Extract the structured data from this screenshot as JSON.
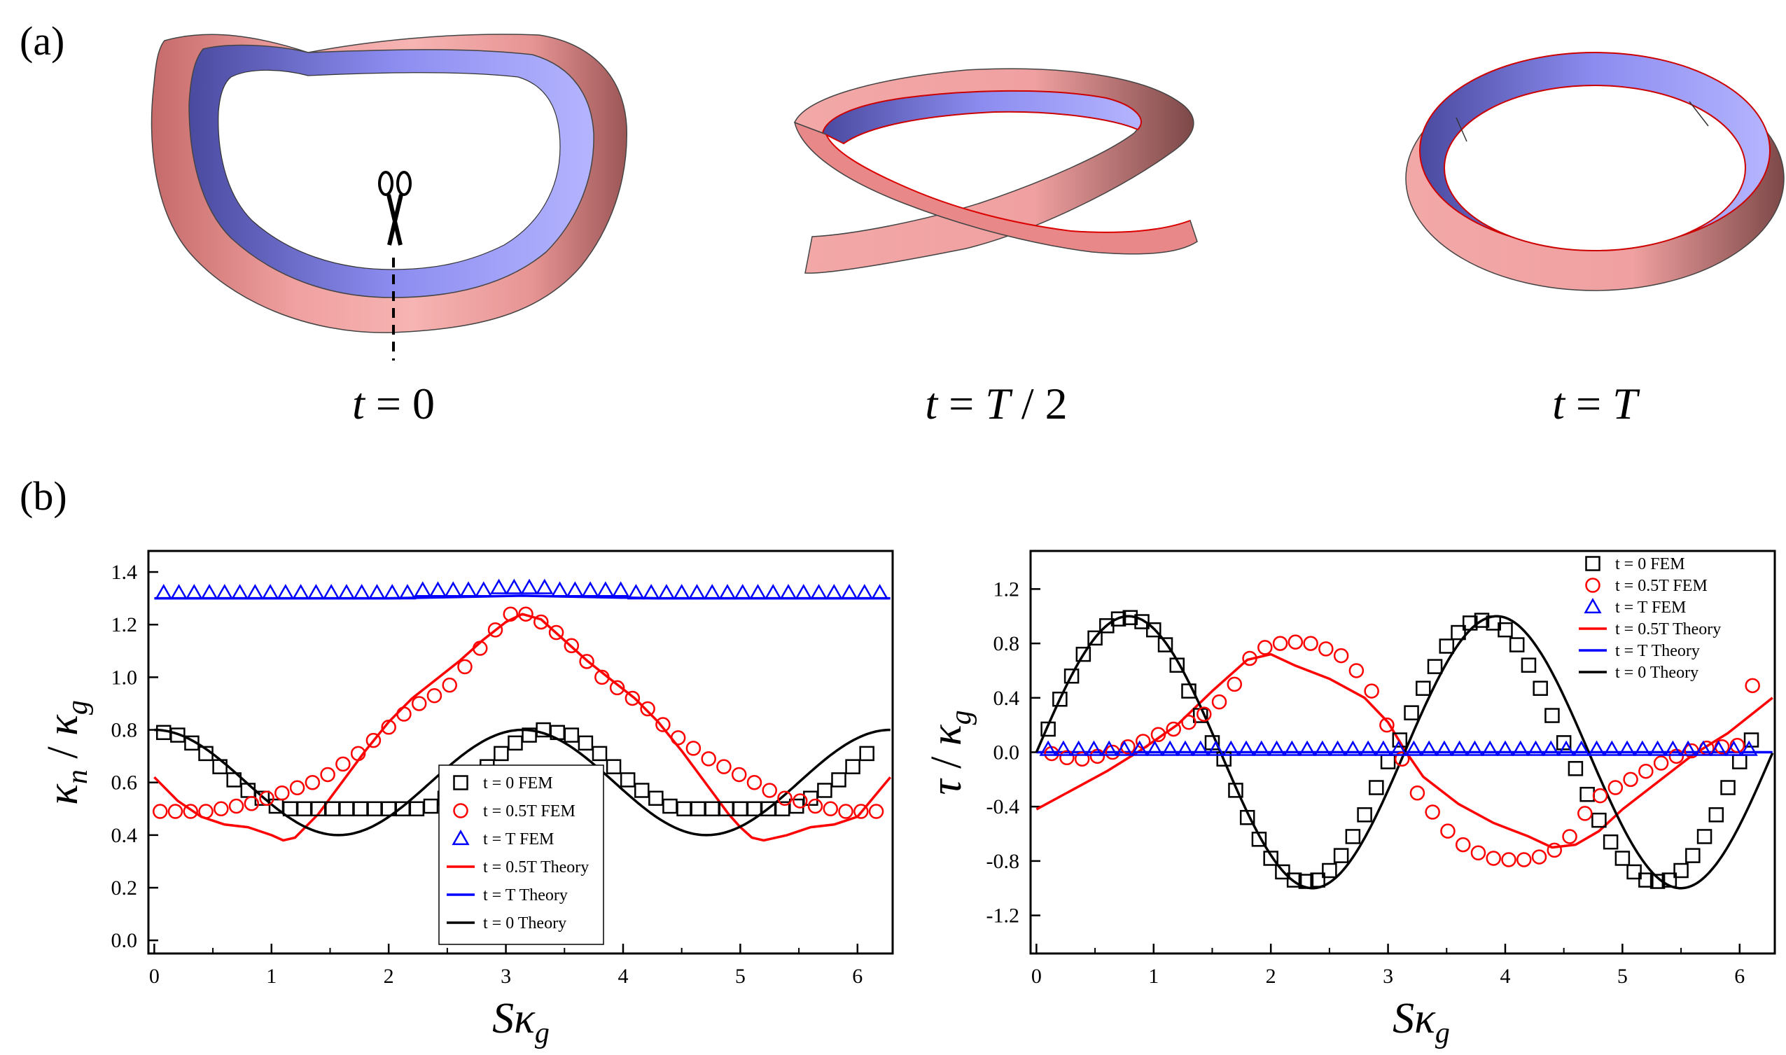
{
  "panel_a": {
    "label": "(a)",
    "captions": [
      "t = 0",
      "t = T / 2",
      "t = T"
    ]
  },
  "panel_b": {
    "label": "(b)"
  },
  "chart_data": [
    {
      "type": "scatter",
      "title": "",
      "xlabel": "Sκg",
      "ylabel": "κn / κg",
      "xlim": [
        -0.05,
        6.3
      ],
      "ylim": [
        -0.05,
        1.48
      ],
      "xticks": [
        0,
        1,
        2,
        3,
        4,
        5,
        6
      ],
      "xtick_labels": [
        "0",
        "1",
        "2",
        "3",
        "4",
        "5",
        "6"
      ],
      "yticks": [
        0.0,
        0.2,
        0.4,
        0.6,
        0.8,
        1.0,
        1.2,
        1.4
      ],
      "ytick_labels": [
        "0.0",
        "0.2",
        "0.4",
        "0.6",
        "0.8",
        "1.0",
        "1.2",
        "1.4"
      ],
      "legend": [
        {
          "name": "t = 0 FEM",
          "kind": "square",
          "color": "#000000"
        },
        {
          "name": "t = 0.5T FEM",
          "kind": "circle",
          "color": "#ff0000"
        },
        {
          "name": "t = T FEM",
          "kind": "triangle",
          "color": "#0000ff"
        },
        {
          "name": "t = 0.5T Theory",
          "kind": "line",
          "color": "#ff0000"
        },
        {
          "name": "t = T Theory",
          "kind": "line",
          "color": "#0000ff"
        },
        {
          "name": "t = 0 Theory",
          "kind": "line",
          "color": "#000000"
        }
      ],
      "legend_position": "bottom-center",
      "series": [
        {
          "name": "t = 0 FEM",
          "kind": "square",
          "color": "#000000",
          "x": [
            0.08,
            0.2,
            0.32,
            0.44,
            0.56,
            0.68,
            0.8,
            0.92,
            1.04,
            1.16,
            1.28,
            1.4,
            1.52,
            1.64,
            1.76,
            1.88,
            2.0,
            2.12,
            2.24,
            2.36,
            2.48,
            2.6,
            2.72,
            2.84,
            2.96,
            3.08,
            3.2,
            3.32,
            3.44,
            3.56,
            3.68,
            3.8,
            3.92,
            4.04,
            4.16,
            4.28,
            4.4,
            4.52,
            4.64,
            4.76,
            4.88,
            5.0,
            5.12,
            5.24,
            5.36,
            5.48,
            5.6,
            5.72,
            5.84,
            5.96,
            6.08
          ],
          "y": [
            0.79,
            0.78,
            0.75,
            0.71,
            0.66,
            0.61,
            0.57,
            0.54,
            0.51,
            0.5,
            0.5,
            0.5,
            0.5,
            0.5,
            0.5,
            0.5,
            0.5,
            0.5,
            0.5,
            0.51,
            0.54,
            0.57,
            0.61,
            0.66,
            0.71,
            0.75,
            0.78,
            0.8,
            0.79,
            0.78,
            0.75,
            0.71,
            0.66,
            0.61,
            0.57,
            0.54,
            0.51,
            0.5,
            0.5,
            0.5,
            0.5,
            0.5,
            0.5,
            0.5,
            0.5,
            0.51,
            0.54,
            0.57,
            0.61,
            0.66,
            0.71
          ]
        },
        {
          "name": "t = 0.5T FEM",
          "kind": "circle",
          "color": "#ff0000",
          "x": [
            0.05,
            0.18,
            0.31,
            0.44,
            0.57,
            0.7,
            0.83,
            0.96,
            1.09,
            1.22,
            1.35,
            1.48,
            1.61,
            1.74,
            1.87,
            2.0,
            2.13,
            2.26,
            2.39,
            2.52,
            2.65,
            2.78,
            2.91,
            3.04,
            3.17,
            3.3,
            3.43,
            3.56,
            3.69,
            3.82,
            3.95,
            4.08,
            4.21,
            4.34,
            4.47,
            4.6,
            4.73,
            4.86,
            4.99,
            5.12,
            5.25,
            5.38,
            5.51,
            5.64,
            5.77,
            5.9,
            6.03,
            6.16
          ],
          "y": [
            0.49,
            0.49,
            0.49,
            0.49,
            0.5,
            0.51,
            0.52,
            0.54,
            0.56,
            0.58,
            0.6,
            0.63,
            0.67,
            0.71,
            0.76,
            0.81,
            0.86,
            0.9,
            0.93,
            0.97,
            1.04,
            1.11,
            1.18,
            1.24,
            1.24,
            1.21,
            1.17,
            1.12,
            1.06,
            1.0,
            0.96,
            0.92,
            0.88,
            0.82,
            0.77,
            0.73,
            0.69,
            0.66,
            0.63,
            0.6,
            0.57,
            0.54,
            0.53,
            0.51,
            0.5,
            0.49,
            0.49,
            0.49
          ]
        },
        {
          "name": "t = T FEM",
          "kind": "triangle",
          "color": "#0000ff",
          "x": [
            0.08,
            0.21,
            0.34,
            0.47,
            0.6,
            0.73,
            0.86,
            0.99,
            1.12,
            1.25,
            1.38,
            1.51,
            1.64,
            1.77,
            1.9,
            2.03,
            2.16,
            2.29,
            2.42,
            2.55,
            2.68,
            2.81,
            2.94,
            3.07,
            3.2,
            3.33,
            3.46,
            3.59,
            3.72,
            3.85,
            3.98,
            4.11,
            4.24,
            4.37,
            4.5,
            4.63,
            4.76,
            4.89,
            5.02,
            5.15,
            5.28,
            5.41,
            5.54,
            5.67,
            5.8,
            5.93,
            6.06,
            6.19
          ],
          "y": [
            1.32,
            1.32,
            1.32,
            1.32,
            1.32,
            1.32,
            1.32,
            1.32,
            1.32,
            1.32,
            1.32,
            1.32,
            1.32,
            1.32,
            1.32,
            1.32,
            1.32,
            1.33,
            1.33,
            1.33,
            1.33,
            1.33,
            1.34,
            1.34,
            1.34,
            1.34,
            1.33,
            1.33,
            1.33,
            1.33,
            1.33,
            1.32,
            1.32,
            1.32,
            1.32,
            1.32,
            1.32,
            1.32,
            1.32,
            1.32,
            1.32,
            1.32,
            1.32,
            1.32,
            1.32,
            1.32,
            1.32,
            1.32
          ]
        },
        {
          "name": "t = 0.5T Theory",
          "kind": "line",
          "color": "#ff0000",
          "x": [
            0.0,
            0.2,
            0.4,
            0.6,
            0.8,
            1.0,
            1.1,
            1.2,
            1.4,
            1.6,
            1.8,
            2.0,
            2.2,
            2.4,
            2.6,
            2.8,
            3.0,
            3.14,
            3.3,
            3.5,
            3.7,
            3.9,
            4.1,
            4.3,
            4.5,
            4.7,
            4.9,
            5.0,
            5.1,
            5.2,
            5.4,
            5.6,
            5.8,
            6.0,
            6.28
          ],
          "y": [
            0.62,
            0.53,
            0.47,
            0.44,
            0.43,
            0.4,
            0.38,
            0.39,
            0.48,
            0.6,
            0.72,
            0.83,
            0.92,
            0.99,
            1.06,
            1.14,
            1.21,
            1.24,
            1.22,
            1.14,
            1.06,
            0.99,
            0.92,
            0.83,
            0.72,
            0.6,
            0.48,
            0.43,
            0.39,
            0.38,
            0.4,
            0.43,
            0.44,
            0.47,
            0.62
          ]
        },
        {
          "name": "t = T Theory",
          "kind": "line",
          "color": "#0000ff",
          "x": [
            0.0,
            1.0,
            2.0,
            2.6,
            3.14,
            3.7,
            4.3,
            5.3,
            6.28
          ],
          "y": [
            1.3,
            1.3,
            1.3,
            1.305,
            1.31,
            1.305,
            1.3,
            1.3,
            1.3
          ]
        },
        {
          "name": "t = 0 Theory",
          "kind": "line",
          "color": "#000000",
          "func": "0.6+0.2*cos(2x)",
          "x_range": [
            0,
            6.28
          ]
        }
      ]
    },
    {
      "type": "scatter",
      "title": "",
      "xlabel": "Sκg",
      "ylabel": "τ / κg",
      "xlim": [
        -0.05,
        6.3
      ],
      "ylim": [
        -1.48,
        1.48
      ],
      "xticks": [
        0,
        1,
        2,
        3,
        4,
        5,
        6
      ],
      "xtick_labels": [
        "0",
        "1",
        "2",
        "3",
        "4",
        "5",
        "6"
      ],
      "yticks": [
        -1.2,
        -0.8,
        -0.4,
        0.0,
        0.4,
        0.8,
        1.2
      ],
      "ytick_labels": [
        "-1.2",
        "-0.8",
        "-0.4",
        "0.0",
        "0.4",
        "0.8",
        "1.2"
      ],
      "legend": [
        {
          "name": "t = 0 FEM",
          "kind": "square",
          "color": "#000000"
        },
        {
          "name": "t = 0.5T FEM",
          "kind": "circle",
          "color": "#ff0000"
        },
        {
          "name": "t = T FEM",
          "kind": "triangle",
          "color": "#0000ff"
        },
        {
          "name": "t = 0.5T Theory",
          "kind": "line",
          "color": "#ff0000"
        },
        {
          "name": "t = T Theory",
          "kind": "line",
          "color": "#0000ff"
        },
        {
          "name": "t = 0 Theory",
          "kind": "line",
          "color": "#000000"
        }
      ],
      "legend_position": "top-right",
      "series": [
        {
          "name": "t = 0 FEM",
          "kind": "square",
          "color": "#000000",
          "x": [
            0.1,
            0.2,
            0.3,
            0.4,
            0.5,
            0.6,
            0.7,
            0.8,
            0.9,
            1.0,
            1.1,
            1.2,
            1.3,
            1.4,
            1.5,
            1.6,
            1.7,
            1.8,
            1.9,
            2.0,
            2.1,
            2.2,
            2.3,
            2.4,
            2.5,
            2.6,
            2.7,
            2.8,
            2.9,
            3.0,
            3.1,
            3.2,
            3.3,
            3.4,
            3.5,
            3.6,
            3.7,
            3.8,
            3.9,
            4.0,
            4.1,
            4.2,
            4.3,
            4.4,
            4.5,
            4.6,
            4.7,
            4.8,
            4.9,
            5.0,
            5.1,
            5.2,
            5.3,
            5.4,
            5.5,
            5.6,
            5.7,
            5.8,
            5.9,
            6.0,
            6.1
          ],
          "y": [
            0.17,
            0.39,
            0.56,
            0.72,
            0.84,
            0.93,
            0.98,
            0.99,
            0.96,
            0.9,
            0.79,
            0.64,
            0.45,
            0.27,
            0.07,
            -0.05,
            -0.28,
            -0.48,
            -0.64,
            -0.78,
            -0.88,
            -0.94,
            -0.95,
            -0.94,
            -0.87,
            -0.76,
            -0.62,
            -0.46,
            -0.26,
            -0.07,
            0.09,
            0.29,
            0.47,
            0.63,
            0.78,
            0.88,
            0.95,
            0.97,
            0.95,
            0.9,
            0.79,
            0.64,
            0.47,
            0.27,
            0.07,
            -0.12,
            -0.31,
            -0.5,
            -0.66,
            -0.78,
            -0.88,
            -0.94,
            -0.95,
            -0.94,
            -0.87,
            -0.76,
            -0.62,
            -0.46,
            -0.26,
            -0.07,
            0.09
          ]
        },
        {
          "name": "t = 0.5T FEM",
          "kind": "circle",
          "color": "#ff0000",
          "x": [
            0.13,
            0.26,
            0.39,
            0.52,
            0.65,
            0.78,
            0.91,
            1.04,
            1.17,
            1.3,
            1.43,
            1.56,
            1.69,
            1.82,
            1.95,
            2.08,
            2.21,
            2.34,
            2.47,
            2.6,
            2.73,
            2.86,
            2.99,
            3.12,
            3.25,
            3.38,
            3.51,
            3.64,
            3.77,
            3.9,
            4.03,
            4.16,
            4.29,
            4.42,
            4.55,
            4.68,
            4.81,
            4.94,
            5.07,
            5.2,
            5.33,
            5.46,
            5.59,
            5.72,
            5.85,
            5.98,
            6.11
          ],
          "y": [
            -0.01,
            -0.04,
            -0.05,
            -0.03,
            0.0,
            0.04,
            0.08,
            0.13,
            0.17,
            0.22,
            0.28,
            0.37,
            0.5,
            0.69,
            0.77,
            0.8,
            0.81,
            0.8,
            0.76,
            0.71,
            0.6,
            0.45,
            0.2,
            -0.05,
            -0.3,
            -0.44,
            -0.58,
            -0.68,
            -0.74,
            -0.78,
            -0.79,
            -0.79,
            -0.77,
            -0.72,
            -0.62,
            -0.45,
            -0.32,
            -0.26,
            -0.2,
            -0.14,
            -0.08,
            -0.03,
            0.01,
            0.03,
            0.04,
            0.05,
            0.49
          ]
        },
        {
          "name": "t = T FEM",
          "kind": "triangle",
          "color": "#0000ff",
          "x": [
            0.1,
            0.23,
            0.36,
            0.49,
            0.62,
            0.75,
            0.88,
            1.01,
            1.14,
            1.27,
            1.4,
            1.53,
            1.66,
            1.79,
            1.92,
            2.05,
            2.18,
            2.31,
            2.44,
            2.57,
            2.7,
            2.83,
            2.96,
            3.09,
            3.22,
            3.35,
            3.48,
            3.61,
            3.74,
            3.87,
            4.0,
            4.13,
            4.26,
            4.39,
            4.52,
            4.65,
            4.78,
            4.91,
            5.04,
            5.17,
            5.3,
            5.43,
            5.56,
            5.69,
            5.82,
            5.95,
            6.08
          ],
          "y": [
            0.02,
            0.02,
            0.02,
            0.02,
            0.02,
            0.02,
            0.02,
            0.02,
            0.02,
            0.02,
            0.02,
            0.02,
            0.02,
            0.02,
            0.02,
            0.02,
            0.02,
            0.02,
            0.02,
            0.02,
            0.02,
            0.02,
            0.02,
            0.02,
            0.02,
            0.02,
            0.02,
            0.02,
            0.02,
            0.02,
            0.02,
            0.02,
            0.02,
            0.02,
            0.02,
            0.02,
            0.02,
            0.02,
            0.02,
            0.02,
            0.02,
            0.02,
            0.02,
            0.02,
            0.02,
            0.02,
            0.02
          ]
        },
        {
          "name": "t = 0.5T Theory",
          "kind": "line",
          "color": "#ff0000",
          "x": [
            0.0,
            0.3,
            0.6,
            0.9,
            1.2,
            1.5,
            1.8,
            2.0,
            2.2,
            2.5,
            2.8,
            3.0,
            3.14,
            3.3,
            3.6,
            3.9,
            4.2,
            4.4,
            4.6,
            4.8,
            5.0,
            5.3,
            5.6,
            5.9,
            6.28
          ],
          "y": [
            -0.42,
            -0.28,
            -0.14,
            0.02,
            0.2,
            0.45,
            0.68,
            0.72,
            0.64,
            0.54,
            0.4,
            0.22,
            0.02,
            -0.18,
            -0.38,
            -0.52,
            -0.62,
            -0.7,
            -0.68,
            -0.58,
            -0.42,
            -0.22,
            -0.02,
            0.14,
            0.4
          ]
        },
        {
          "name": "t = T Theory",
          "kind": "line",
          "color": "#0000ff",
          "x": [
            0.0,
            6.28
          ],
          "y": [
            0.0,
            0.0
          ]
        },
        {
          "name": "t = 0 Theory",
          "kind": "line",
          "color": "#000000",
          "func": "sin(2x)",
          "x_range": [
            0,
            6.28
          ]
        }
      ]
    }
  ]
}
